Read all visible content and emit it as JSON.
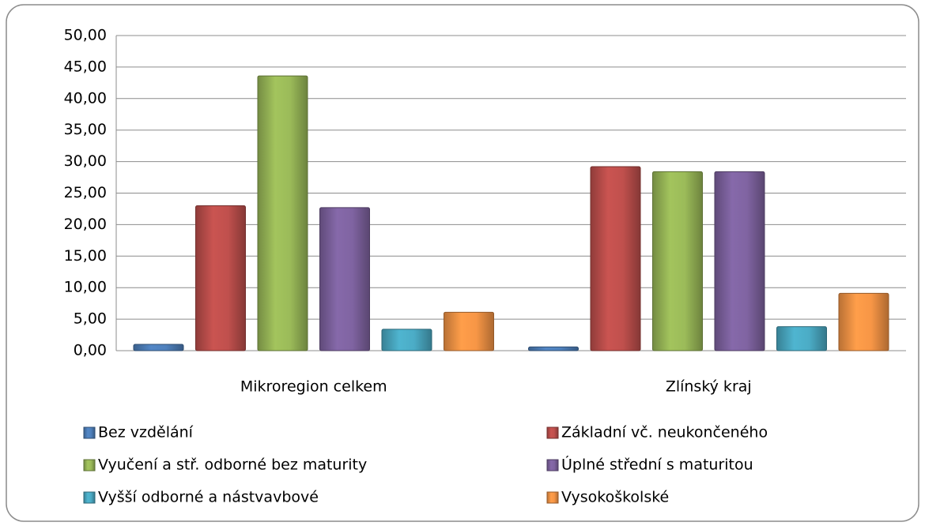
{
  "chart_data": {
    "type": "bar",
    "categories": [
      "Mikroregion celkem",
      "Zlínský kraj"
    ],
    "series": [
      {
        "name": "Bez vzdělání",
        "color": "#4f81bd",
        "values": [
          1.0,
          0.6
        ]
      },
      {
        "name": "Základní vč. neukončeného",
        "color": "#c0504d",
        "values": [
          23.0,
          29.2
        ]
      },
      {
        "name": "Vyučení a stř. odborné bez maturity",
        "color": "#9bbb59",
        "values": [
          43.6,
          28.4
        ]
      },
      {
        "name": "Úplné střední s maturitou",
        "color": "#8064a2",
        "values": [
          22.7,
          28.4
        ]
      },
      {
        "name": "Vyšší odborné a nástvavbové",
        "color": "#4bacc6",
        "values": [
          3.4,
          3.8
        ]
      },
      {
        "name": "Vysokoškolské",
        "color": "#f79646",
        "values": [
          6.1,
          9.1
        ]
      }
    ],
    "ylim": [
      0,
      50
    ],
    "yticks": [
      {
        "value": 0,
        "label": "0,00"
      },
      {
        "value": 5,
        "label": "5,00"
      },
      {
        "value": 10,
        "label": "10,00"
      },
      {
        "value": 15,
        "label": "15,00"
      },
      {
        "value": 20,
        "label": "20,00"
      },
      {
        "value": 25,
        "label": "25,00"
      },
      {
        "value": 30,
        "label": "30,00"
      },
      {
        "value": 35,
        "label": "35,00"
      },
      {
        "value": 40,
        "label": "40,00"
      },
      {
        "value": 45,
        "label": "45,00"
      },
      {
        "value": 50,
        "label": "50,00"
      }
    ],
    "grid": true,
    "legend": "bottom"
  }
}
